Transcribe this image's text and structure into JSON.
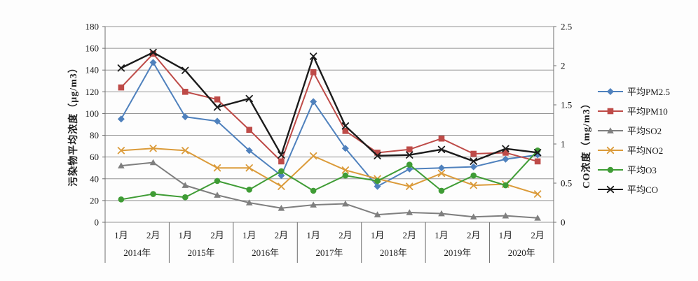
{
  "chart_data": {
    "type": "line",
    "title": "",
    "ylabel_left": "污染物平均浓度（μg/m3）",
    "ylabel_right": "CO浓度（mg/m3）",
    "grid": true,
    "legend_position": "right",
    "y_left": {
      "min": 0,
      "max": 180,
      "step": 20,
      "ticks": [
        "0",
        "20",
        "40",
        "60",
        "80",
        "100",
        "120",
        "140",
        "160",
        "180"
      ]
    },
    "y_right": {
      "min": 0,
      "max": 2.5,
      "step": 0.5,
      "ticks": [
        "0",
        "0.5",
        "1",
        "1.5",
        "2",
        "2.5"
      ]
    },
    "x": {
      "month_labels": [
        "1月",
        "2月"
      ],
      "years": [
        "2014年",
        "2015年",
        "2016年",
        "2017年",
        "2018年",
        "2019年",
        "2020年"
      ]
    },
    "categories": [
      "2014-1月",
      "2014-2月",
      "2015-1月",
      "2015-2月",
      "2016-1月",
      "2016-2月",
      "2017-1月",
      "2017-2月",
      "2018-1月",
      "2018-2月",
      "2019-1月",
      "2019-2月",
      "2020-1月",
      "2020-2月"
    ],
    "series": [
      {
        "name": "平均PM2.5",
        "color": "#4F81BD",
        "marker": "diamond",
        "axis": "left",
        "values": [
          95,
          147,
          97,
          93,
          66,
          43,
          111,
          68,
          33,
          49,
          50,
          51,
          58,
          62
        ]
      },
      {
        "name": "平均PM10",
        "color": "#BE4B48",
        "marker": "square",
        "axis": "left",
        "values": [
          124,
          155,
          120,
          113,
          85,
          56,
          138,
          84,
          64,
          67,
          77,
          63,
          64,
          56
        ]
      },
      {
        "name": "平均SO2",
        "color": "#7F7F7F",
        "marker": "triangle",
        "axis": "left",
        "values": [
          52,
          55,
          34,
          25,
          18,
          13,
          16,
          17,
          7,
          9,
          8,
          5,
          6,
          4
        ]
      },
      {
        "name": "平均NO2",
        "color": "#DB9B3A",
        "marker": "x",
        "axis": "left",
        "values": [
          66,
          68,
          66,
          50,
          50,
          33,
          61,
          48,
          40,
          33,
          45,
          34,
          35,
          26
        ]
      },
      {
        "name": "平均O3",
        "color": "#3F9C35",
        "marker": "circle",
        "axis": "left",
        "values": [
          21,
          26,
          23,
          38,
          30,
          47,
          29,
          43,
          38,
          53,
          29,
          43,
          34,
          66
        ]
      },
      {
        "name": "平均CO",
        "color": "#1B1B1B",
        "marker": "x",
        "axis": "right",
        "values": [
          1.97,
          2.17,
          1.94,
          1.47,
          1.58,
          0.86,
          2.12,
          1.23,
          0.85,
          0.86,
          0.93,
          0.78,
          0.94,
          0.89
        ]
      }
    ]
  }
}
